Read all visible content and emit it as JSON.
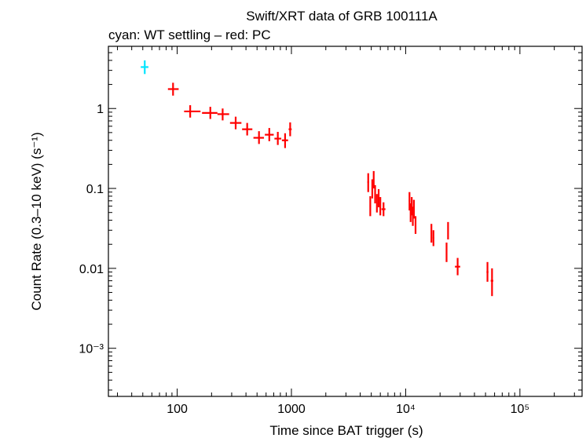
{
  "chart_data": {
    "type": "scatter",
    "title": "Swift/XRT data of GRB 100111A",
    "subtitle": "cyan: WT settling – red: PC",
    "xlabel": "Time since BAT trigger (s)",
    "ylabel": "Count Rate (0.3–10 keV) (s⁻¹)",
    "xscale": "log",
    "yscale": "log",
    "xlim": [
      25,
      350000
    ],
    "ylim": [
      0.00025,
      6
    ],
    "x_tick_labels": [
      {
        "value": 100,
        "text": "100"
      },
      {
        "value": 1000,
        "text": "1000"
      },
      {
        "value": 10000,
        "text": "10⁴"
      },
      {
        "value": 100000,
        "text": "10⁵"
      }
    ],
    "y_tick_labels": [
      {
        "value": 1,
        "text": "1"
      },
      {
        "value": 0.1,
        "text": "0.1"
      },
      {
        "value": 0.01,
        "text": "0.01"
      },
      {
        "value": 0.001,
        "text": "10⁻³"
      }
    ],
    "series": [
      {
        "name": "WT settling",
        "color": "#00e5ff",
        "points": [
          {
            "x": 52,
            "xlo": 48,
            "xhi": 56,
            "y": 3.3,
            "ylo": 2.7,
            "yhi": 4.0
          }
        ]
      },
      {
        "name": "PC",
        "color": "#ff0000",
        "points": [
          {
            "x": 92,
            "xlo": 83,
            "xhi": 103,
            "y": 1.75,
            "ylo": 1.45,
            "yhi": 2.1
          },
          {
            "x": 130,
            "xlo": 115,
            "xhi": 160,
            "y": 0.92,
            "ylo": 0.77,
            "yhi": 1.1
          },
          {
            "x": 195,
            "xlo": 165,
            "xhi": 225,
            "y": 0.88,
            "ylo": 0.74,
            "yhi": 1.05
          },
          {
            "x": 250,
            "xlo": 225,
            "xhi": 285,
            "y": 0.85,
            "ylo": 0.71,
            "yhi": 1.0
          },
          {
            "x": 325,
            "xlo": 290,
            "xhi": 365,
            "y": 0.66,
            "ylo": 0.55,
            "yhi": 0.79
          },
          {
            "x": 410,
            "xlo": 370,
            "xhi": 455,
            "y": 0.55,
            "ylo": 0.46,
            "yhi": 0.66
          },
          {
            "x": 520,
            "xlo": 465,
            "xhi": 575,
            "y": 0.43,
            "ylo": 0.36,
            "yhi": 0.52
          },
          {
            "x": 640,
            "xlo": 585,
            "xhi": 700,
            "y": 0.47,
            "ylo": 0.39,
            "yhi": 0.57
          },
          {
            "x": 760,
            "xlo": 710,
            "xhi": 815,
            "y": 0.42,
            "ylo": 0.35,
            "yhi": 0.51
          },
          {
            "x": 880,
            "xlo": 825,
            "xhi": 935,
            "y": 0.4,
            "ylo": 0.32,
            "yhi": 0.49
          },
          {
            "x": 975,
            "xlo": 945,
            "xhi": 1005,
            "y": 0.55,
            "ylo": 0.45,
            "yhi": 0.67
          },
          {
            "x": 4700,
            "xlo": 4620,
            "xhi": 4780,
            "y": 0.12,
            "ylo": 0.09,
            "yhi": 0.155
          },
          {
            "x": 4900,
            "xlo": 4830,
            "xhi": 4970,
            "y": 0.06,
            "ylo": 0.045,
            "yhi": 0.08
          },
          {
            "x": 5100,
            "xlo": 5030,
            "xhi": 5170,
            "y": 0.1,
            "ylo": 0.075,
            "yhi": 0.13
          },
          {
            "x": 5250,
            "xlo": 5190,
            "xhi": 5310,
            "y": 0.13,
            "ylo": 0.1,
            "yhi": 0.165
          },
          {
            "x": 5400,
            "xlo": 5340,
            "xhi": 5460,
            "y": 0.085,
            "ylo": 0.065,
            "yhi": 0.11
          },
          {
            "x": 5600,
            "xlo": 5530,
            "xhi": 5670,
            "y": 0.065,
            "ylo": 0.05,
            "yhi": 0.085
          },
          {
            "x": 5800,
            "xlo": 5730,
            "xhi": 5870,
            "y": 0.075,
            "ylo": 0.058,
            "yhi": 0.098
          },
          {
            "x": 6000,
            "xlo": 5930,
            "xhi": 6070,
            "y": 0.06,
            "ylo": 0.046,
            "yhi": 0.078
          },
          {
            "x": 6400,
            "xlo": 6150,
            "xhi": 6650,
            "y": 0.055,
            "ylo": 0.045,
            "yhi": 0.067
          },
          {
            "x": 10800,
            "xlo": 10650,
            "xhi": 10950,
            "y": 0.07,
            "ylo": 0.053,
            "yhi": 0.09
          },
          {
            "x": 11050,
            "xlo": 10950,
            "xhi": 11150,
            "y": 0.05,
            "ylo": 0.038,
            "yhi": 0.065
          },
          {
            "x": 11300,
            "xlo": 11200,
            "xhi": 11400,
            "y": 0.06,
            "ylo": 0.046,
            "yhi": 0.078
          },
          {
            "x": 11550,
            "xlo": 11450,
            "xhi": 11650,
            "y": 0.045,
            "ylo": 0.034,
            "yhi": 0.059
          },
          {
            "x": 11800,
            "xlo": 11700,
            "xhi": 11900,
            "y": 0.055,
            "ylo": 0.042,
            "yhi": 0.072
          },
          {
            "x": 12200,
            "xlo": 12050,
            "xhi": 12350,
            "y": 0.035,
            "ylo": 0.027,
            "yhi": 0.045
          },
          {
            "x": 16800,
            "xlo": 16600,
            "xhi": 17000,
            "y": 0.028,
            "ylo": 0.021,
            "yhi": 0.036
          },
          {
            "x": 17500,
            "xlo": 17250,
            "xhi": 17750,
            "y": 0.024,
            "ylo": 0.019,
            "yhi": 0.03
          },
          {
            "x": 22800,
            "xlo": 22500,
            "xhi": 23100,
            "y": 0.016,
            "ylo": 0.012,
            "yhi": 0.021
          },
          {
            "x": 23500,
            "xlo": 23200,
            "xhi": 23800,
            "y": 0.03,
            "ylo": 0.023,
            "yhi": 0.038
          },
          {
            "x": 28500,
            "xlo": 27000,
            "xhi": 30000,
            "y": 0.0105,
            "ylo": 0.0082,
            "yhi": 0.0135
          },
          {
            "x": 52000,
            "xlo": 51000,
            "xhi": 53000,
            "y": 0.009,
            "ylo": 0.0068,
            "yhi": 0.012
          },
          {
            "x": 57000,
            "xlo": 55500,
            "xhi": 58500,
            "y": 0.007,
            "ylo": 0.0045,
            "yhi": 0.01
          }
        ]
      }
    ]
  }
}
